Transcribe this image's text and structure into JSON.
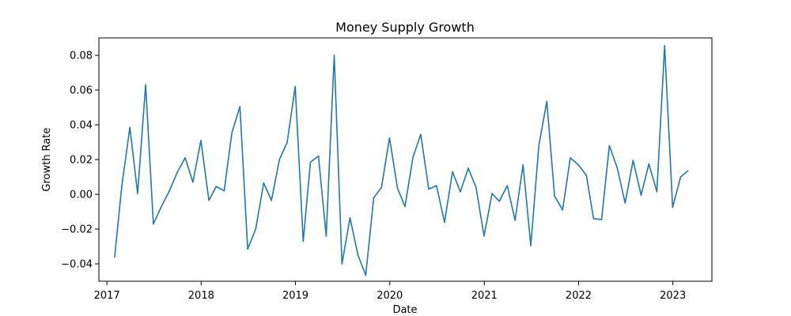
{
  "chart_data": {
    "type": "line",
    "title": "Money Supply Growth",
    "xlabel": "Date",
    "ylabel": "Growth Rate",
    "xlim": [
      "2016-12-01",
      "2023-06-01"
    ],
    "ylim": [
      -0.05,
      0.09
    ],
    "grid": false,
    "legend": "none",
    "color": "#1f77b4",
    "x_ticks": [
      "2017-01-01",
      "2018-01-01",
      "2019-01-01",
      "2020-01-01",
      "2021-01-01",
      "2022-01-01",
      "2023-01-01"
    ],
    "x_tick_labels": [
      "2017",
      "2018",
      "2019",
      "2020",
      "2021",
      "2022",
      "2023"
    ],
    "y_ticks": [
      -0.04,
      -0.02,
      0.0,
      0.02,
      0.04,
      0.06,
      0.08
    ],
    "y_tick_labels": [
      "−0.04",
      "−0.02",
      "0.00",
      "0.02",
      "0.04",
      "0.06",
      "0.08"
    ],
    "series": [
      {
        "x": [
          "2017-01-31",
          "2017-02-28",
          "2017-03-31",
          "2017-04-30",
          "2017-05-31",
          "2017-06-30",
          "2017-07-31",
          "2017-08-31",
          "2017-09-30",
          "2017-10-31",
          "2017-11-30",
          "2017-12-31",
          "2018-01-31",
          "2018-02-28",
          "2018-03-31",
          "2018-04-30",
          "2018-05-31",
          "2018-06-30",
          "2018-07-31",
          "2018-08-31",
          "2018-09-30",
          "2018-10-31",
          "2018-11-30",
          "2018-12-31",
          "2019-01-31",
          "2019-02-28",
          "2019-03-31",
          "2019-04-30",
          "2019-05-31",
          "2019-06-30",
          "2019-07-31",
          "2019-08-31",
          "2019-09-30",
          "2019-10-31",
          "2019-11-30",
          "2019-12-31",
          "2020-01-31",
          "2020-02-29",
          "2020-03-31",
          "2020-04-30",
          "2020-05-31",
          "2020-06-30",
          "2020-07-31",
          "2020-08-31",
          "2020-09-30",
          "2020-10-31",
          "2020-11-30",
          "2020-12-31",
          "2021-01-31",
          "2021-02-28",
          "2021-03-31",
          "2021-04-30",
          "2021-05-31",
          "2021-06-30",
          "2021-07-31",
          "2021-08-31",
          "2021-09-30",
          "2021-10-31",
          "2021-11-30",
          "2021-12-31",
          "2022-01-31",
          "2022-02-28",
          "2022-03-31",
          "2022-04-30",
          "2022-05-31",
          "2022-06-30",
          "2022-07-31",
          "2022-08-31",
          "2022-09-30",
          "2022-10-31",
          "2022-11-30",
          "2022-12-31",
          "2023-01-31",
          "2023-02-28"
        ],
        "values": [
          -0.036,
          0.005,
          0.0385,
          0.0005,
          0.063,
          -0.017,
          -0.007,
          0.002,
          0.0125,
          0.021,
          0.007,
          0.031,
          -0.0035,
          0.0045,
          0.002,
          0.0355,
          0.0505,
          -0.0315,
          -0.02,
          0.0065,
          -0.0035,
          0.02,
          0.03,
          0.062,
          -0.027,
          0.0185,
          0.022,
          -0.024,
          0.08,
          -0.04,
          -0.0135,
          -0.035,
          -0.0465,
          -0.002,
          0.004,
          0.0325,
          0.0035,
          -0.007,
          0.0215,
          0.0345,
          0.003,
          0.005,
          -0.016,
          0.013,
          0.0015,
          0.015,
          0.004,
          -0.024,
          0.0005,
          -0.004,
          0.005,
          -0.015,
          0.017,
          -0.0295,
          0.028,
          0.0535,
          -0.001,
          -0.009,
          0.021,
          0.017,
          0.011,
          -0.014,
          -0.0145,
          0.028,
          0.015,
          -0.005,
          0.0195,
          -0.0005,
          0.0175,
          0.0015,
          0.0855,
          -0.0075,
          0.01,
          0.0135
        ]
      }
    ]
  }
}
